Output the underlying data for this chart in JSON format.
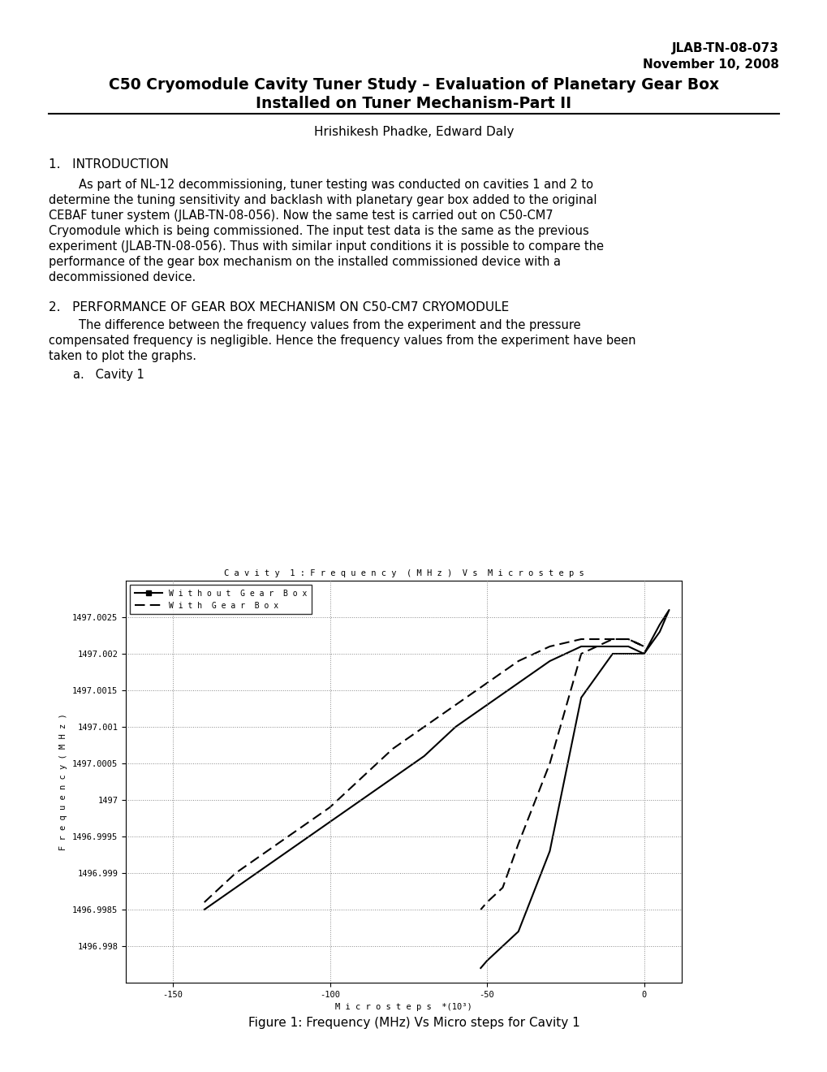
{
  "report_id": "JLAB-TN-08-073",
  "report_date": "November 10, 2008",
  "main_title_line1": "C50 Cryomodule Cavity Tuner Study – Evaluation of Planetary Gear Box",
  "main_title_line2": "Installed on Tuner Mechanism-Part II",
  "authors": "Hrishikesh Phadke, Edward Daly",
  "section1_title": "1.   INTRODUCTION",
  "section2_title": "2.   PERFORMANCE OF GEAR BOX MECHANISM ON C50-CM7 CRYOMODULE",
  "section2_item": "a.   Cavity 1",
  "graph_title": "C a v i t y  1 : F r e q u e n c y  ( M H z )  V s  M i c r o s t e p s",
  "xlabel": "M i c r o s t e p s  *(10³)",
  "ylabel": "F r e q u e n c y ( M H z )",
  "legend_without": "W i t h o u t  G e a r  B o x",
  "legend_with": "W i t h  G e a r  B o x",
  "figure_caption": "Figure 1: Frequency (MHz) Vs Micro steps for Cavity 1",
  "xlim": [
    -165,
    12
  ],
  "ylim": [
    1496.9975,
    1497.003
  ],
  "yticks": [
    1496.998,
    1496.9985,
    1496.999,
    1496.9995,
    1497.0,
    1497.0005,
    1497.001,
    1497.0015,
    1497.002,
    1497.0025
  ],
  "ytick_labels": [
    "1496.998",
    "1496.9985",
    "1496.999",
    "1496.9995",
    "1497",
    "1497.0005",
    "1497.001",
    "1497.0015",
    "1497.002",
    "1497.0025"
  ],
  "xticks": [
    -150,
    -100,
    -50,
    0
  ],
  "bg_color": "#ffffff",
  "text_color": "#000000",
  "no_gb_fwd_x": [
    -140,
    -130,
    -120,
    -110,
    -100,
    -90,
    -80,
    -70,
    -60,
    -50,
    -40,
    -30,
    -20,
    -10,
    -5,
    0,
    5,
    8
  ],
  "no_gb_fwd_y": [
    1496.9985,
    1496.9988,
    1496.9991,
    1496.9994,
    1496.9997,
    1497.0,
    1497.0003,
    1497.0006,
    1497.001,
    1497.0013,
    1497.0016,
    1497.0019,
    1497.0021,
    1497.0021,
    1497.0021,
    1497.002,
    1497.0023,
    1497.0026
  ],
  "no_gb_ret_x": [
    8,
    5,
    0,
    -5,
    -10,
    -20,
    -30,
    -40,
    -50,
    -52
  ],
  "no_gb_ret_y": [
    1497.0026,
    1497.0024,
    1497.002,
    1497.002,
    1497.002,
    1497.0014,
    1496.9993,
    1496.9982,
    1496.9978,
    1496.9977
  ],
  "gb_fwd_x": [
    -140,
    -130,
    -120,
    -110,
    -100,
    -90,
    -80,
    -70,
    -60,
    -50,
    -40,
    -30,
    -20,
    -10,
    -5,
    0
  ],
  "gb_fwd_y": [
    1496.9986,
    1496.999,
    1496.9993,
    1496.9996,
    1496.9999,
    1497.0003,
    1497.0007,
    1497.001,
    1497.0013,
    1497.0016,
    1497.0019,
    1497.0021,
    1497.0022,
    1497.0022,
    1497.0022,
    1497.0021
  ],
  "gb_ret_x": [
    0,
    -5,
    -10,
    -20,
    -30,
    -40,
    -45,
    -50,
    -52
  ],
  "gb_ret_y": [
    1497.0021,
    1497.0022,
    1497.0022,
    1497.002,
    1497.0005,
    1496.9994,
    1496.9988,
    1496.9986,
    1496.9985
  ]
}
